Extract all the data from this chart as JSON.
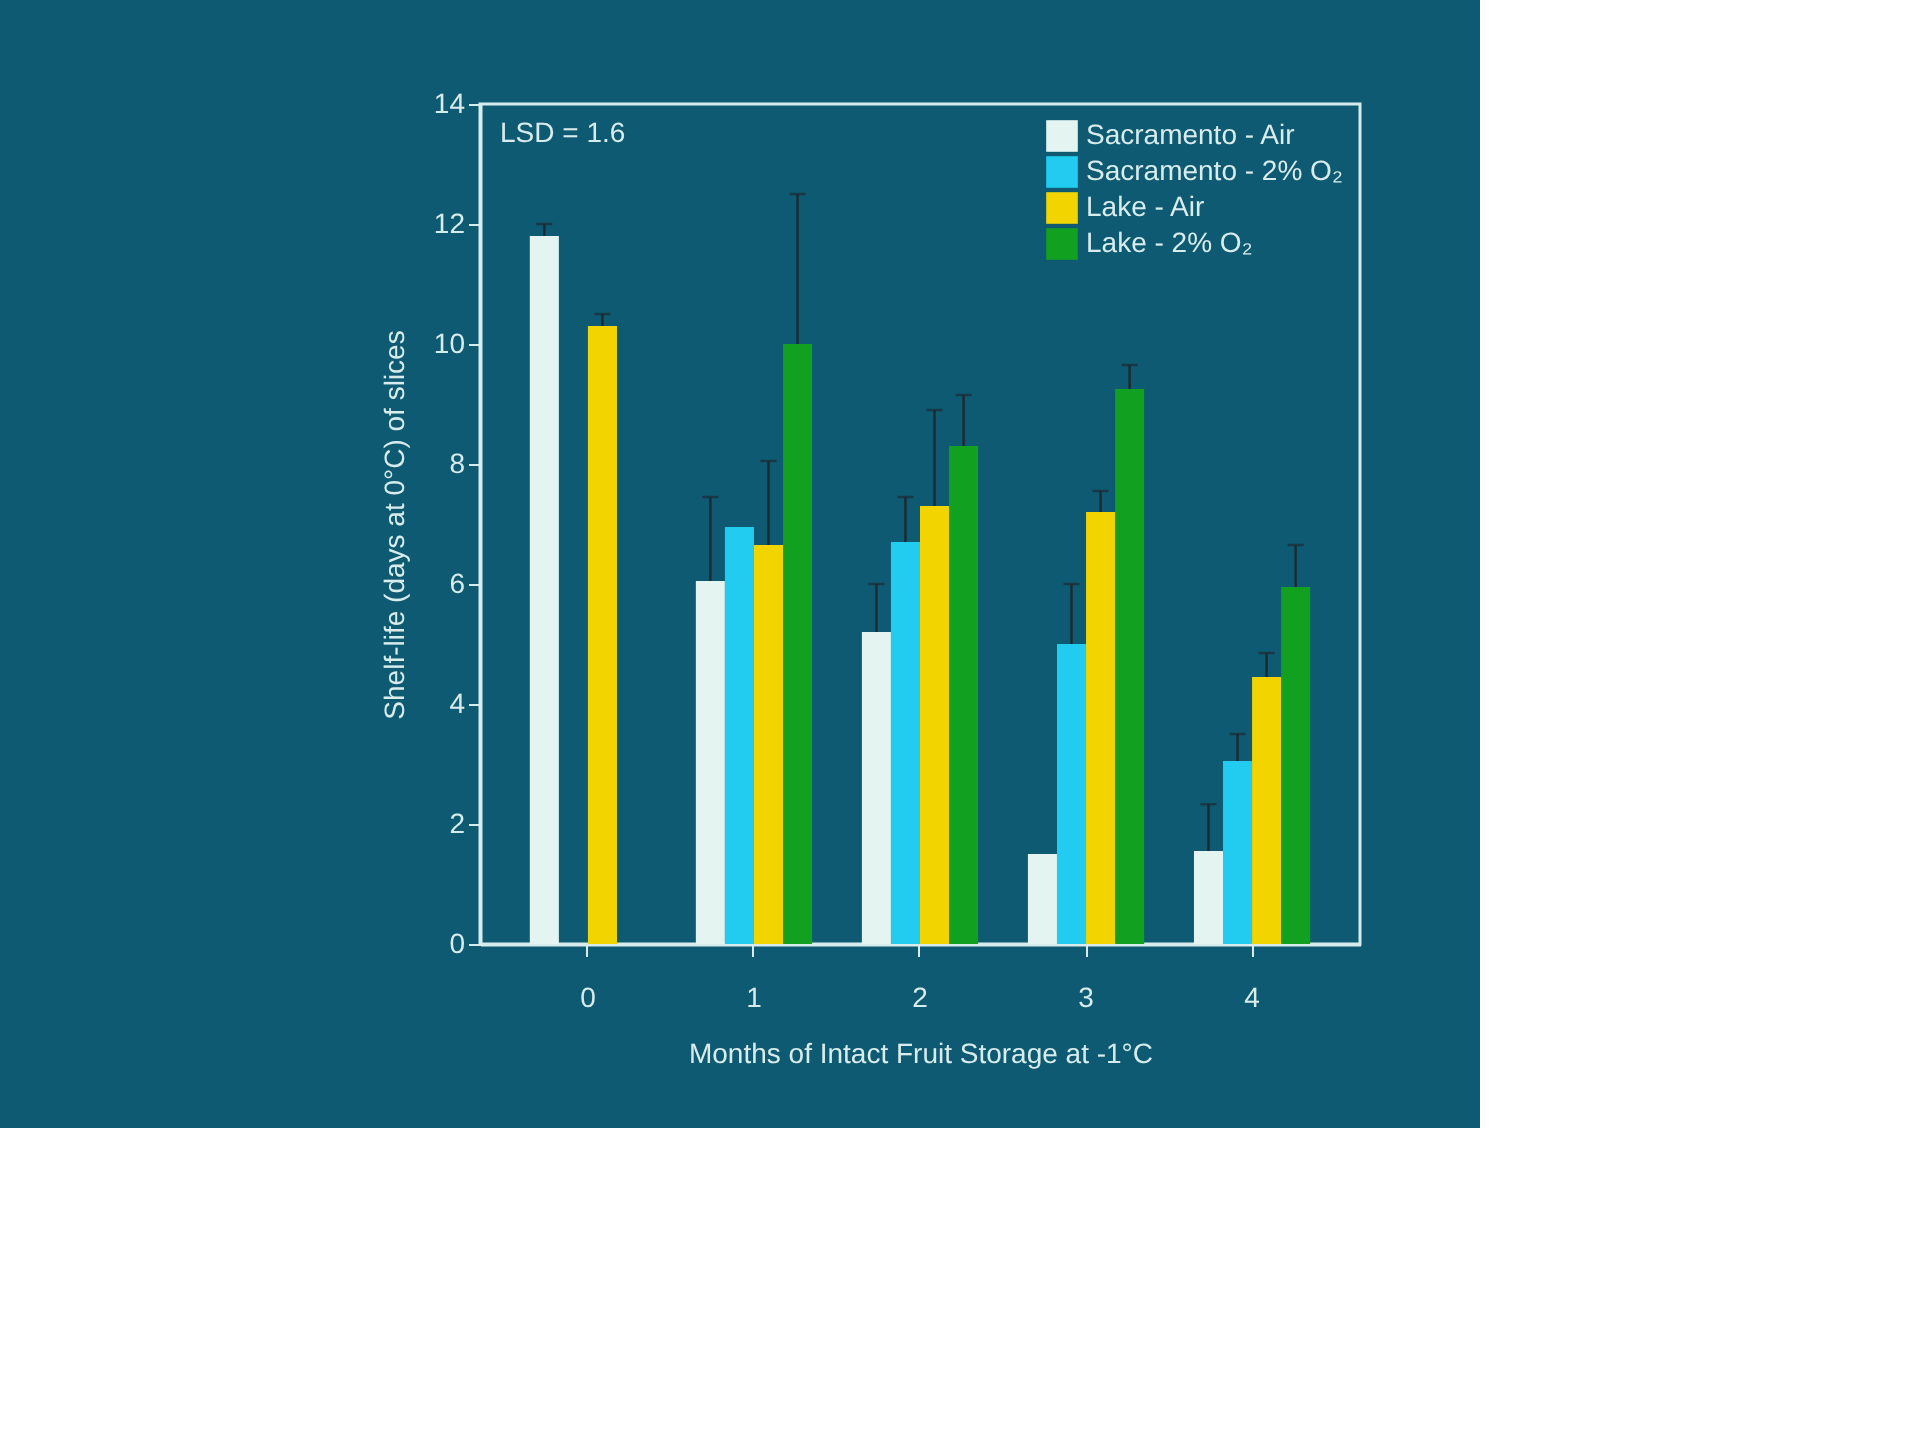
{
  "chart_data": {
    "type": "bar",
    "ylabel": "Shelf-life (days at 0°C) of slices",
    "xlabel": "Months of Intact Fruit Storage at -1°C",
    "categories": [
      "0",
      "1",
      "2",
      "3",
      "4"
    ],
    "series": [
      {
        "name": "Sacramento - Air",
        "color": "#e4f4f0",
        "values": [
          11.8,
          6.05,
          5.2,
          1.5,
          1.55
        ],
        "errors": [
          [
            11.8,
            12.0
          ],
          [
            6.05,
            7.45
          ],
          [
            5.2,
            6.0
          ],
          null,
          [
            1.55,
            2.33
          ]
        ]
      },
      {
        "name": "Sacramento - 2% O₂",
        "color": "#22ccf0",
        "values": [
          null,
          6.95,
          6.7,
          5.0,
          3.05
        ],
        "errors": [
          null,
          null,
          [
            6.7,
            7.45
          ],
          [
            5.0,
            6.0
          ],
          [
            3.05,
            3.5
          ]
        ]
      },
      {
        "name": "Lake - Air",
        "color": "#f2d400",
        "values": [
          10.3,
          6.65,
          7.3,
          7.2,
          4.45
        ],
        "errors": [
          [
            10.3,
            10.5
          ],
          [
            6.65,
            8.05
          ],
          [
            7.3,
            8.9
          ],
          [
            7.2,
            7.55
          ],
          [
            4.45,
            4.85
          ]
        ]
      },
      {
        "name": "Lake - 2% O₂",
        "color": "#12a020",
        "values": [
          null,
          10.0,
          8.3,
          9.25,
          5.95
        ],
        "errors": [
          null,
          [
            10.0,
            12.5
          ],
          [
            8.3,
            9.15
          ],
          [
            9.25,
            9.65
          ],
          [
            5.95,
            6.65
          ]
        ]
      }
    ],
    "ylim": [
      0,
      14
    ],
    "yticks": [
      0,
      2,
      4,
      6,
      8,
      10,
      12,
      14
    ],
    "annotations": [
      "LSD = 1.6"
    ],
    "legend": "top right",
    "grid": false
  }
}
